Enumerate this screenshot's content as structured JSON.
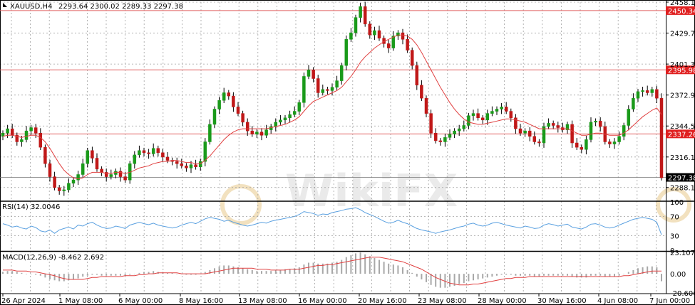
{
  "header": {
    "symbol": "XAUUSD,H4",
    "ohlc": "2293.64 2300.02 2289.33 2297.38"
  },
  "watermark": "WikiFX",
  "colors": {
    "bull": "#1a9a1a",
    "bear": "#c01818",
    "level_line": "#e06060",
    "level_label": "#e02020",
    "ma": "#e04040",
    "rsi_line": "#5aa0e0",
    "macd_hist": "#a8a8a8",
    "macd_signal": "#e04040",
    "grid": "#a0a0a0",
    "current_price_bg": "#000000"
  },
  "chart_data": [
    {
      "type": "candlestick",
      "title": "XAUUSD,H4",
      "ylim": [
        2276.2,
        2458.1
      ],
      "price_ticks": [
        "2458.10",
        "2429.70",
        "2401.30",
        "2372.90",
        "2344.50",
        "2316.10",
        "2288.10"
      ],
      "horizontal_levels": [
        {
          "value": 2450.34,
          "label": "2450.34"
        },
        {
          "value": 2395.98,
          "label": "2395.98"
        },
        {
          "value": 2337.26,
          "label": "2337.26"
        }
      ],
      "current_price": {
        "value": 2297.38,
        "label": "2297.38"
      },
      "x_labels": [
        "26 Apr 2024",
        "1 May 08:00",
        "6 May 00:00",
        "8 May 16:00",
        "13 May 08:00",
        "16 May 00:00",
        "20 May 16:00",
        "23 May 08:00",
        "28 May 00:00",
        "30 May 16:00",
        "4 Jun 08:00",
        "7 Jun 00:00"
      ],
      "close_series": [
        2338,
        2342,
        2336,
        2330,
        2332,
        2340,
        2343,
        2338,
        2325,
        2310,
        2298,
        2288,
        2285,
        2286,
        2292,
        2295,
        2300,
        2310,
        2322,
        2315,
        2305,
        2302,
        2298,
        2300,
        2303,
        2298,
        2295,
        2310,
        2318,
        2322,
        2320,
        2319,
        2324,
        2320,
        2316,
        2313,
        2312,
        2310,
        2308,
        2306,
        2309,
        2307,
        2312,
        2330,
        2346,
        2360,
        2368,
        2375,
        2372,
        2362,
        2356,
        2348,
        2340,
        2337,
        2339,
        2336,
        2341,
        2344,
        2348,
        2350,
        2352,
        2355,
        2358,
        2366,
        2390,
        2396,
        2388,
        2375,
        2378,
        2377,
        2380,
        2386,
        2400,
        2424,
        2430,
        2444,
        2454,
        2438,
        2428,
        2432,
        2425,
        2420,
        2416,
        2427,
        2430,
        2424,
        2414,
        2400,
        2382,
        2370,
        2356,
        2338,
        2331,
        2330,
        2334,
        2337,
        2340,
        2342,
        2345,
        2354,
        2356,
        2352,
        2350,
        2356,
        2358,
        2360,
        2362,
        2358,
        2352,
        2342,
        2338,
        2340,
        2335,
        2330,
        2329,
        2344,
        2347,
        2345,
        2343,
        2341,
        2346,
        2329,
        2325,
        2323,
        2332,
        2348,
        2349,
        2344,
        2330,
        2328,
        2330,
        2335,
        2345,
        2360,
        2370,
        2376,
        2377,
        2375,
        2378,
        2370,
        2297
      ],
      "ma_series": [
        2335,
        2336,
        2336,
        2335,
        2334,
        2335,
        2336,
        2336,
        2334,
        2330,
        2324,
        2317,
        2310,
        2304,
        2300,
        2297,
        2296,
        2297,
        2300,
        2302,
        2302,
        2302,
        2301,
        2301,
        2302,
        2302,
        2301,
        2302,
        2304,
        2306,
        2307,
        2308,
        2310,
        2311,
        2312,
        2312,
        2313,
        2313,
        2312,
        2311,
        2311,
        2310,
        2310,
        2313,
        2317,
        2322,
        2327,
        2332,
        2336,
        2339,
        2341,
        2342,
        2342,
        2342,
        2342,
        2342,
        2342,
        2343,
        2344,
        2345,
        2346,
        2348,
        2350,
        2353,
        2358,
        2363,
        2367,
        2369,
        2371,
        2373,
        2375,
        2377,
        2380,
        2385,
        2390,
        2396,
        2403,
        2408,
        2412,
        2416,
        2419,
        2422,
        2424,
        2426,
        2428,
        2428,
        2427,
        2424,
        2419,
        2412,
        2404,
        2396,
        2388,
        2380,
        2373,
        2366,
        2360,
        2355,
        2351,
        2348,
        2347,
        2346,
        2346,
        2347,
        2348,
        2349,
        2350,
        2351,
        2351,
        2350,
        2349,
        2348,
        2346,
        2344,
        2342,
        2342,
        2342,
        2342,
        2342,
        2342,
        2342,
        2340,
        2338,
        2336,
        2336,
        2337,
        2338,
        2338,
        2337,
        2336,
        2336,
        2336,
        2338,
        2341,
        2345,
        2349,
        2353,
        2356,
        2359,
        2361,
        2355
      ]
    },
    {
      "type": "line",
      "title": "RSI(14) 32.0046",
      "ylim": [
        0,
        100
      ],
      "ticks": [
        "100",
        "70",
        "30",
        "0"
      ],
      "series": [
        {
          "name": "RSI(14)",
          "values": [
            55,
            52,
            48,
            50,
            46,
            44,
            50,
            47,
            40,
            38,
            42,
            35,
            42,
            45,
            48,
            44,
            52,
            50,
            55,
            58,
            52,
            48,
            45,
            46,
            50,
            48,
            45,
            52,
            55,
            58,
            55,
            53,
            56,
            52,
            50,
            48,
            46,
            48,
            52,
            55,
            58,
            55,
            60,
            65,
            68,
            66,
            64,
            60,
            62,
            58,
            55,
            52,
            50,
            52,
            55,
            58,
            56,
            60,
            62,
            64,
            66,
            68,
            70,
            74,
            80,
            78,
            76,
            72,
            75,
            74,
            78,
            80,
            82,
            85,
            86,
            88,
            84,
            78,
            74,
            70,
            65,
            60,
            56,
            58,
            62,
            58,
            55,
            50,
            45,
            42,
            40,
            38,
            35,
            38,
            40,
            42,
            45,
            48,
            50,
            54,
            56,
            52,
            50,
            52,
            56,
            58,
            55,
            52,
            50,
            48,
            46,
            50,
            48,
            45,
            46,
            52,
            55,
            53,
            50,
            52,
            54,
            48,
            46,
            44,
            48,
            54,
            55,
            52,
            48,
            46,
            48,
            52,
            56,
            60,
            64,
            66,
            68,
            66,
            64,
            58,
            32
          ]
        }
      ]
    },
    {
      "type": "bar",
      "title": "MACD(12,26,9) -8.462 2.692",
      "ylim": [
        -20.606,
        23.107
      ],
      "ticks": [
        "23.107",
        "0.00",
        "-20.606"
      ],
      "histogram": [
        2,
        3,
        3,
        2,
        1,
        0,
        0,
        -1,
        -2,
        -4,
        -6,
        -7,
        -8,
        -8,
        -7,
        -6,
        -5,
        -3,
        -2,
        -1,
        -1,
        -2,
        -2,
        -2,
        -2,
        -2,
        -2,
        -1,
        0,
        1,
        2,
        2,
        3,
        2,
        2,
        1,
        1,
        0,
        0,
        -1,
        -1,
        -1,
        0,
        2,
        4,
        6,
        8,
        9,
        9,
        8,
        7,
        6,
        5,
        4,
        3,
        3,
        3,
        3,
        4,
        4,
        5,
        5,
        6,
        7,
        10,
        12,
        12,
        11,
        11,
        11,
        12,
        13,
        15,
        18,
        20,
        22,
        23,
        21,
        19,
        17,
        15,
        13,
        11,
        10,
        9,
        7,
        4,
        1,
        -3,
        -6,
        -9,
        -12,
        -14,
        -15,
        -15,
        -14,
        -13,
        -11,
        -10,
        -8,
        -7,
        -6,
        -5,
        -4,
        -3,
        -2,
        -1,
        -1,
        -1,
        -2,
        -2,
        -2,
        -2,
        -3,
        -3,
        -2,
        -2,
        -2,
        -2,
        -2,
        -2,
        -3,
        -4,
        -4,
        -4,
        -2,
        -2,
        -2,
        -3,
        -3,
        -3,
        -2,
        0,
        2,
        4,
        6,
        7,
        8,
        8,
        7,
        -8
      ],
      "signal": [
        4,
        4,
        4,
        3,
        3,
        3,
        2,
        2,
        1,
        0,
        -1,
        -2,
        -4,
        -5,
        -6,
        -6,
        -6,
        -6,
        -5,
        -4,
        -4,
        -3,
        -3,
        -3,
        -3,
        -3,
        -2,
        -2,
        -2,
        -1,
        -1,
        0,
        0,
        1,
        1,
        1,
        1,
        1,
        0,
        0,
        0,
        0,
        0,
        0,
        1,
        2,
        3,
        4,
        5,
        6,
        6,
        6,
        6,
        6,
        5,
        5,
        5,
        4,
        4,
        4,
        4,
        5,
        5,
        5,
        6,
        7,
        8,
        9,
        9,
        10,
        10,
        11,
        12,
        13,
        14,
        15,
        16,
        17,
        18,
        18,
        18,
        17,
        16,
        15,
        14,
        13,
        11,
        9,
        7,
        5,
        2,
        -1,
        -4,
        -6,
        -8,
        -10,
        -11,
        -12,
        -12,
        -12,
        -11,
        -11,
        -10,
        -9,
        -8,
        -7,
        -6,
        -5,
        -5,
        -4,
        -4,
        -4,
        -3,
        -3,
        -3,
        -3,
        -3,
        -3,
        -3,
        -3,
        -3,
        -3,
        -3,
        -3,
        -3,
        -3,
        -3,
        -3,
        -3,
        -3,
        -3,
        -3,
        -2,
        -2,
        -1,
        0,
        1,
        2,
        3,
        3,
        3
      ]
    }
  ]
}
